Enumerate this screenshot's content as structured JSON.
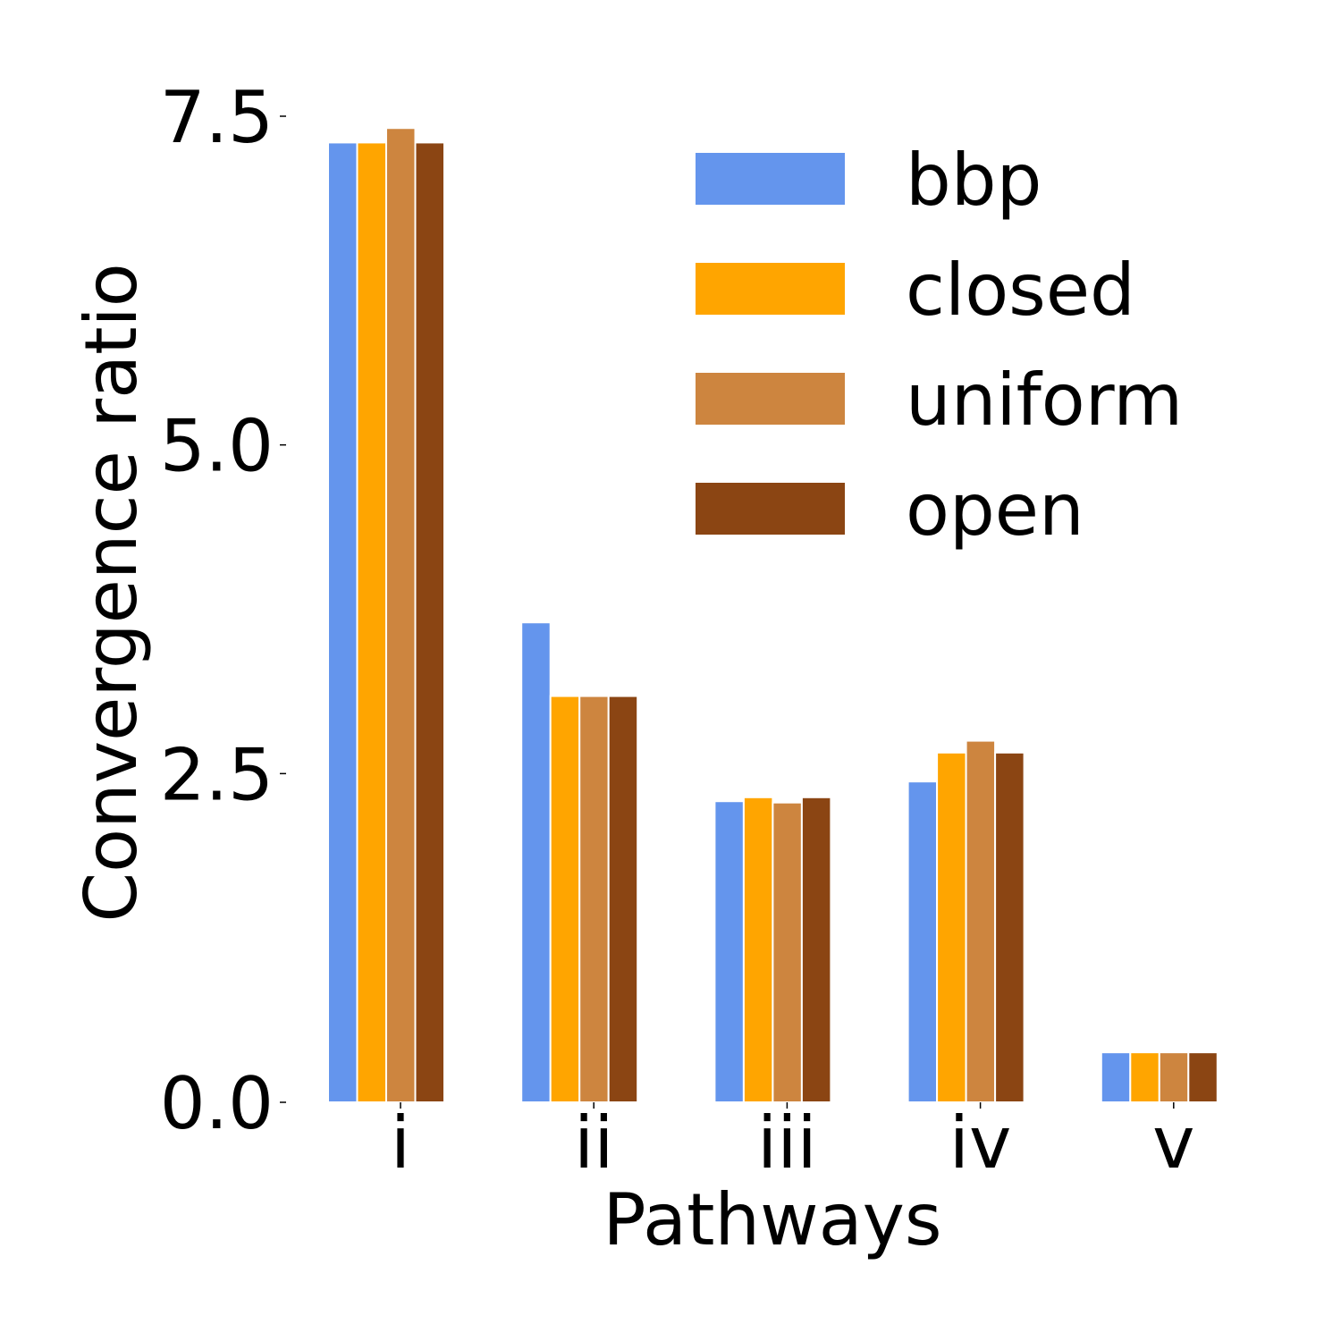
{
  "chart_data": {
    "type": "bar",
    "title": "",
    "xlabel": "Pathways",
    "ylabel": "Convergence ratio",
    "categories": [
      "i",
      "ii",
      "iii",
      "iv",
      "v"
    ],
    "yticks": [
      "0.0",
      "2.5",
      "5.0",
      "7.5"
    ],
    "ylim": [
      0,
      7.5
    ],
    "grid": false,
    "legend_position": "top-right",
    "series": [
      {
        "name": "bbp",
        "color": "#6495ED",
        "values": [
          7.3,
          3.65,
          2.29,
          2.44,
          0.38
        ]
      },
      {
        "name": "closed",
        "color": "#FFA500",
        "values": [
          7.3,
          3.09,
          2.32,
          2.66,
          0.38
        ]
      },
      {
        "name": "uniform",
        "color": "#CD853F",
        "values": [
          7.41,
          3.09,
          2.28,
          2.75,
          0.38
        ]
      },
      {
        "name": "open",
        "color": "#8B4513",
        "values": [
          7.3,
          3.09,
          2.32,
          2.66,
          0.38
        ]
      }
    ]
  }
}
